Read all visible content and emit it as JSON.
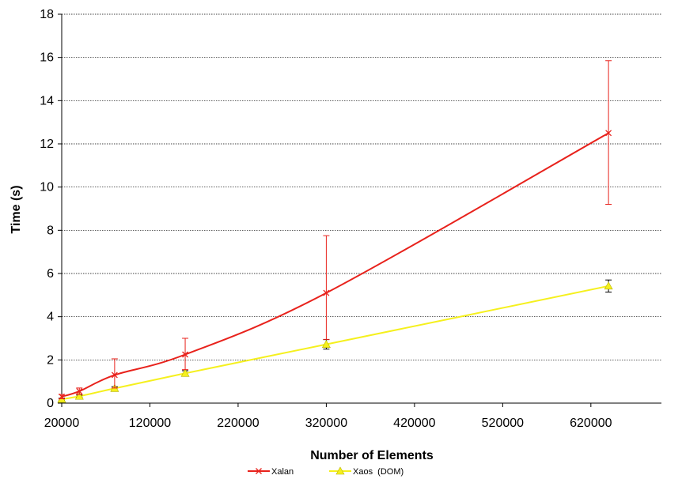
{
  "chart_data": {
    "type": "line",
    "xlabel": "Number of Elements",
    "ylabel": "Time (s)",
    "xlim": [
      20000,
      700000
    ],
    "ylim": [
      0,
      18
    ],
    "x_ticks": [
      20000,
      120000,
      220000,
      320000,
      420000,
      520000,
      620000
    ],
    "x_tick_labels": [
      "20000",
      "120000",
      "220000",
      "320000",
      "420000",
      "520000",
      "620000"
    ],
    "y_ticks": [
      0,
      2,
      4,
      6,
      8,
      10,
      12,
      14,
      16,
      18
    ],
    "y_tick_labels": [
      "0",
      "2",
      "4",
      "6",
      "8",
      "10",
      "12",
      "14",
      "16",
      "18"
    ],
    "grid": "horizontal",
    "legend_position": "bottom",
    "series": [
      {
        "name": "Xalan",
        "color": "#e8221c",
        "marker": "x",
        "x": [
          20000,
          40000,
          80000,
          160000,
          320000,
          640000
        ],
        "y": [
          0.3,
          0.55,
          1.3,
          2.25,
          5.1,
          12.5
        ],
        "err_low": [
          0.1,
          0.15,
          0.6,
          0.7,
          2.15,
          3.3
        ],
        "err_high": [
          0.1,
          0.15,
          0.75,
          0.75,
          2.65,
          3.35
        ]
      },
      {
        "name": "Xaos  (DOM)",
        "color": "#f5f01e",
        "marker": "triangle",
        "x": [
          20000,
          40000,
          80000,
          160000,
          320000,
          640000
        ],
        "y": [
          0.18,
          0.32,
          0.68,
          1.38,
          2.72,
          5.42
        ],
        "err_low": [
          0.05,
          0.05,
          0.08,
          0.12,
          0.22,
          0.28
        ],
        "err_high": [
          0.05,
          0.05,
          0.08,
          0.12,
          0.22,
          0.28
        ]
      }
    ]
  }
}
